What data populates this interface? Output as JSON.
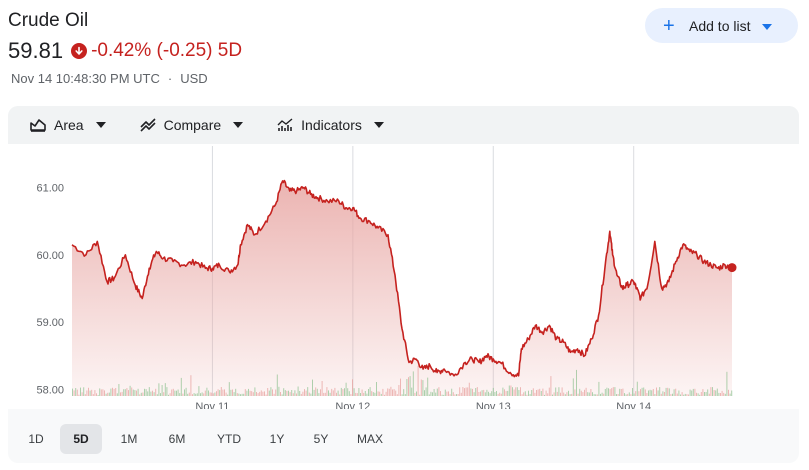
{
  "header": {
    "title": "Crude Oil",
    "price": "59.81",
    "change": "-0.42% (-0.25) 5D",
    "timestamp": "Nov 14 10:48:30 PM UTC",
    "currency": "USD",
    "add_to_list_label": "Add to list",
    "down_color": "#c5221f",
    "accent_color": "#1a73e8"
  },
  "toolbar": {
    "area_label": "Area",
    "compare_label": "Compare",
    "indicators_label": "Indicators"
  },
  "ranges": [
    "1D",
    "5D",
    "1M",
    "6M",
    "YTD",
    "1Y",
    "5Y",
    "MAX"
  ],
  "active_range": "5D",
  "chart_data": {
    "type": "area",
    "title": "",
    "xlabel": "",
    "ylabel": "",
    "ylim": [
      57.9,
      61.5
    ],
    "y_ticks": [
      58.0,
      59.0,
      60.0,
      61.0
    ],
    "y_tick_labels": [
      "58.00",
      "59.00",
      "60.00",
      "61.00"
    ],
    "x_ticks": [
      "Nov 11",
      "Nov 12",
      "Nov 13",
      "Nov 14"
    ],
    "x_range": [
      0,
      4.7
    ],
    "x_tick_positions": [
      1,
      2,
      3,
      4
    ],
    "grid": "vertical at day boundaries",
    "line_color": "#c5221f",
    "fill_color": "#e8a7a4",
    "last_value": 59.81,
    "series": [
      {
        "x": [
          0,
          0.1,
          0.18,
          0.25,
          0.3,
          0.38,
          0.45,
          0.5,
          0.55,
          0.6,
          0.65,
          0.72,
          0.8,
          0.88,
          0.95,
          1.0,
          1.05,
          1.12,
          1.18,
          1.2,
          1.25,
          1.3,
          1.38,
          1.45,
          1.5,
          1.55,
          1.6,
          1.65,
          1.7,
          1.75,
          1.82,
          1.9,
          1.95,
          2.0,
          2.05,
          2.12,
          2.18,
          2.25,
          2.3,
          2.35,
          2.4,
          2.45,
          2.5,
          2.55,
          2.6,
          2.65,
          2.72,
          2.8,
          2.85,
          2.9,
          2.95,
          3.0,
          3.05,
          3.12,
          3.18,
          3.2,
          3.25,
          3.3,
          3.35,
          3.4,
          3.45,
          3.5,
          3.55,
          3.6,
          3.65,
          3.7,
          3.75,
          3.8,
          3.83,
          3.85,
          3.88,
          3.92,
          3.95,
          4.0,
          4.02,
          4.05,
          4.1,
          4.15,
          4.2,
          4.25,
          4.3,
          4.35,
          4.4,
          4.45,
          4.5,
          4.55,
          4.6,
          4.65,
          4.7
        ],
        "values": [
          60.15,
          60.0,
          60.2,
          59.6,
          59.65,
          60.0,
          59.55,
          59.35,
          59.8,
          60.05,
          59.95,
          59.9,
          59.85,
          59.9,
          59.8,
          59.8,
          59.85,
          59.75,
          59.85,
          60.15,
          60.45,
          60.3,
          60.5,
          60.75,
          61.1,
          60.95,
          60.95,
          61.0,
          60.9,
          60.85,
          60.8,
          60.8,
          60.7,
          60.7,
          60.55,
          60.5,
          60.4,
          60.3,
          59.7,
          58.9,
          58.4,
          58.45,
          58.3,
          58.35,
          58.25,
          58.3,
          58.2,
          58.4,
          58.45,
          58.4,
          58.5,
          58.45,
          58.4,
          58.25,
          58.2,
          58.6,
          58.75,
          58.95,
          58.85,
          58.95,
          58.75,
          58.7,
          58.55,
          58.6,
          58.5,
          58.75,
          59.1,
          59.9,
          60.35,
          60.0,
          59.7,
          59.5,
          59.55,
          59.6,
          59.5,
          59.35,
          59.55,
          60.2,
          59.5,
          59.6,
          59.9,
          60.15,
          60.05,
          60.0,
          59.9,
          59.85,
          59.8,
          59.85,
          59.81
        ]
      }
    ]
  }
}
